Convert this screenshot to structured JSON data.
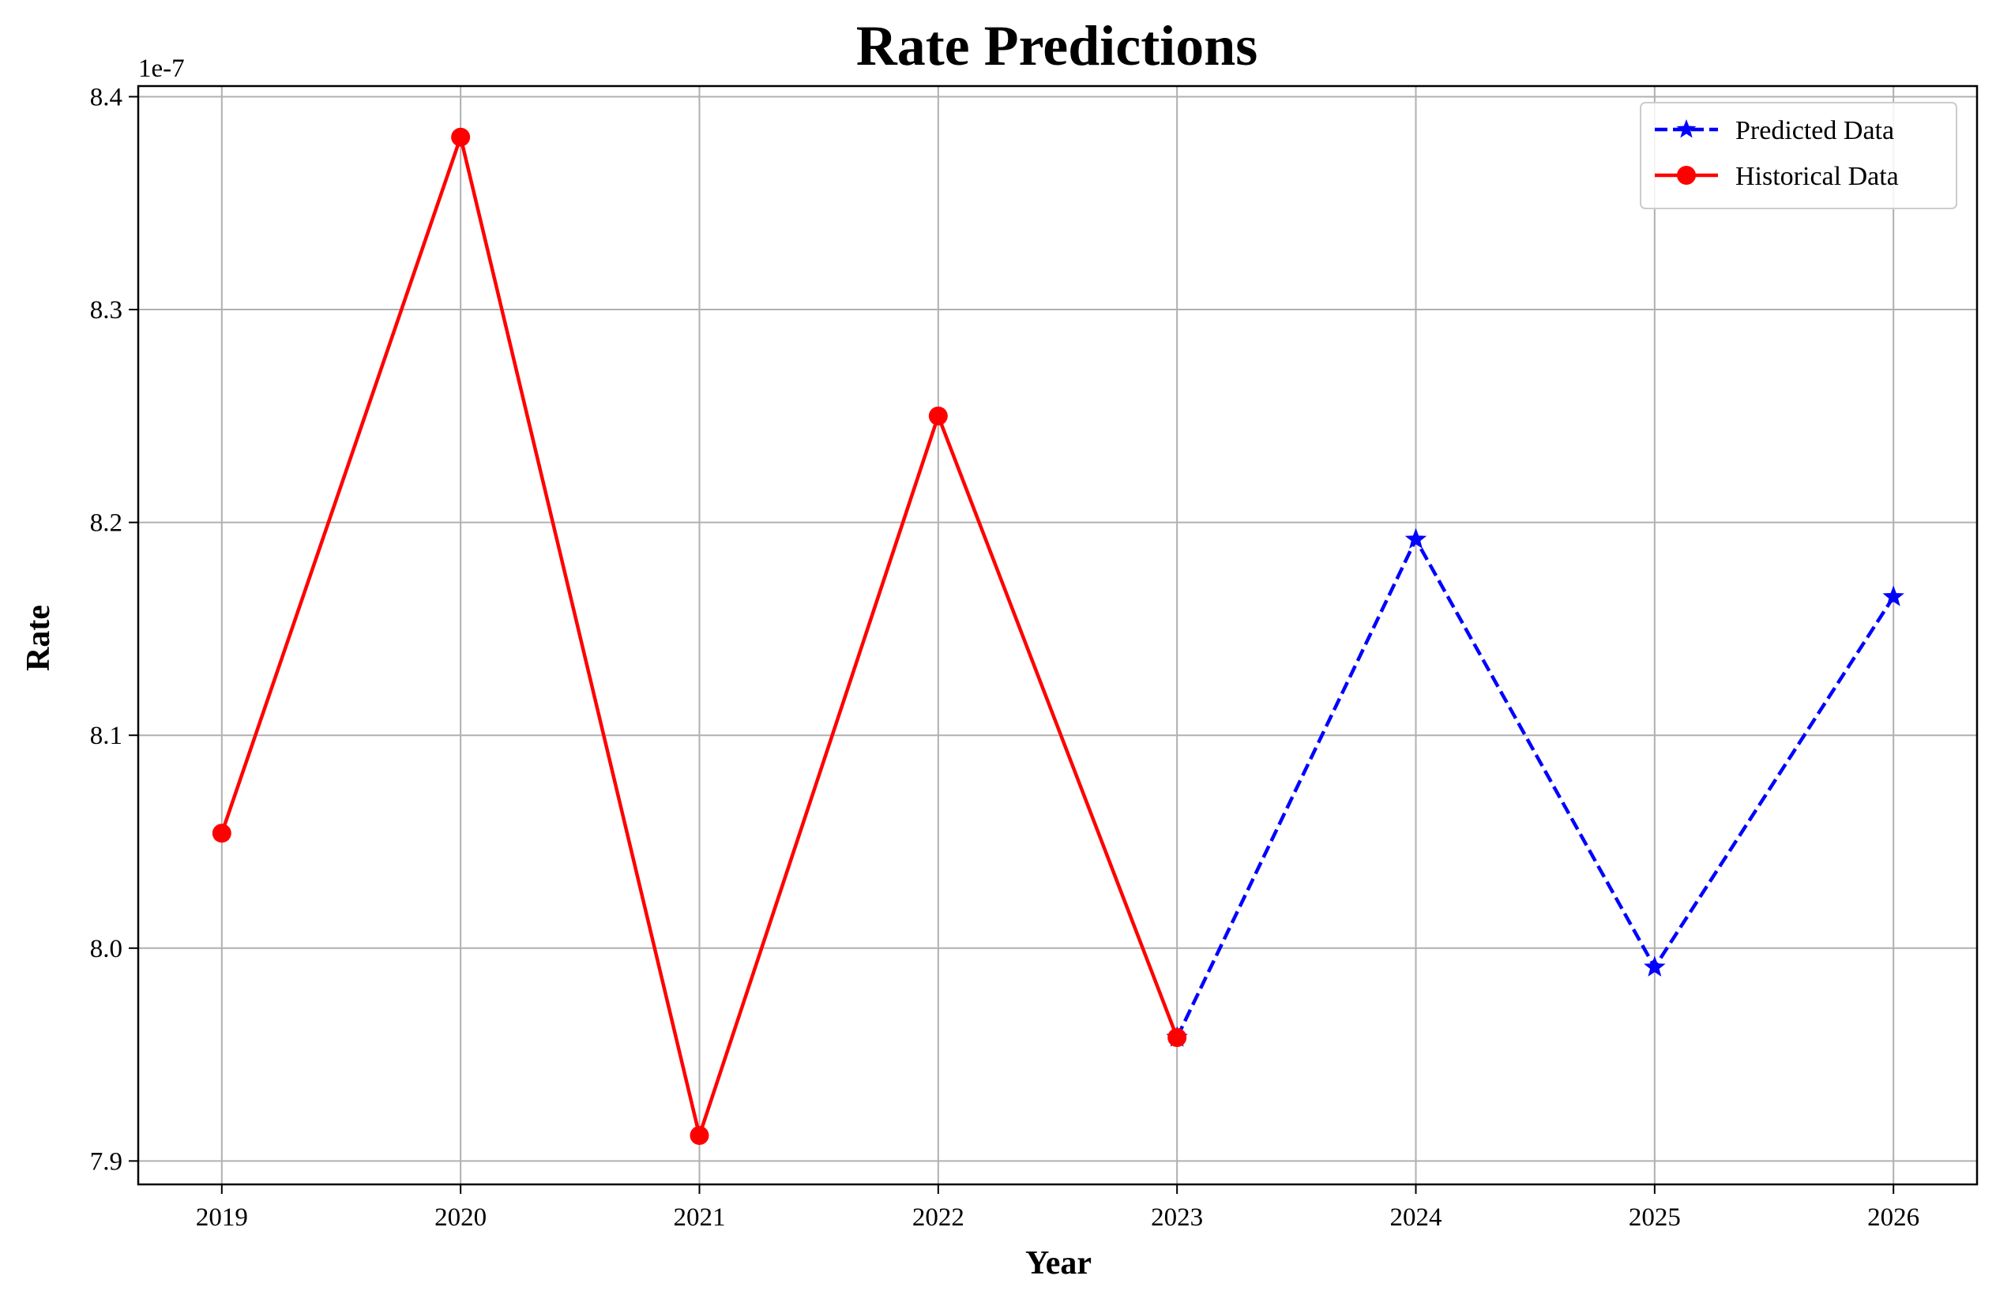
{
  "chart_data": {
    "type": "line",
    "title": "Rate Predictions",
    "xlabel": "Year",
    "ylabel": "Rate",
    "y_offset_label": "1e-7",
    "x_ticks": [
      "2019",
      "2020",
      "2021",
      "2022",
      "2023",
      "2024",
      "2025",
      "2026"
    ],
    "y_ticks": [
      "7.9",
      "8.0",
      "8.1",
      "8.2",
      "8.3",
      "8.4"
    ],
    "xlim": [
      2018.65,
      2026.35
    ],
    "ylim": [
      7.889,
      8.405
    ],
    "grid": true,
    "legend_position": "top-right",
    "series": [
      {
        "name": "Predicted Data",
        "color": "#0000ff",
        "line_style": "dashed",
        "marker": "star",
        "x": [
          2023,
          2024,
          2025,
          2026
        ],
        "y": [
          7.958,
          8.192,
          7.991,
          8.165
        ]
      },
      {
        "name": "Historical Data",
        "color": "#ff0000",
        "line_style": "solid",
        "marker": "circle",
        "x": [
          2019,
          2020,
          2021,
          2022,
          2023
        ],
        "y": [
          8.054,
          8.381,
          7.912,
          8.25,
          7.958
        ]
      }
    ]
  }
}
